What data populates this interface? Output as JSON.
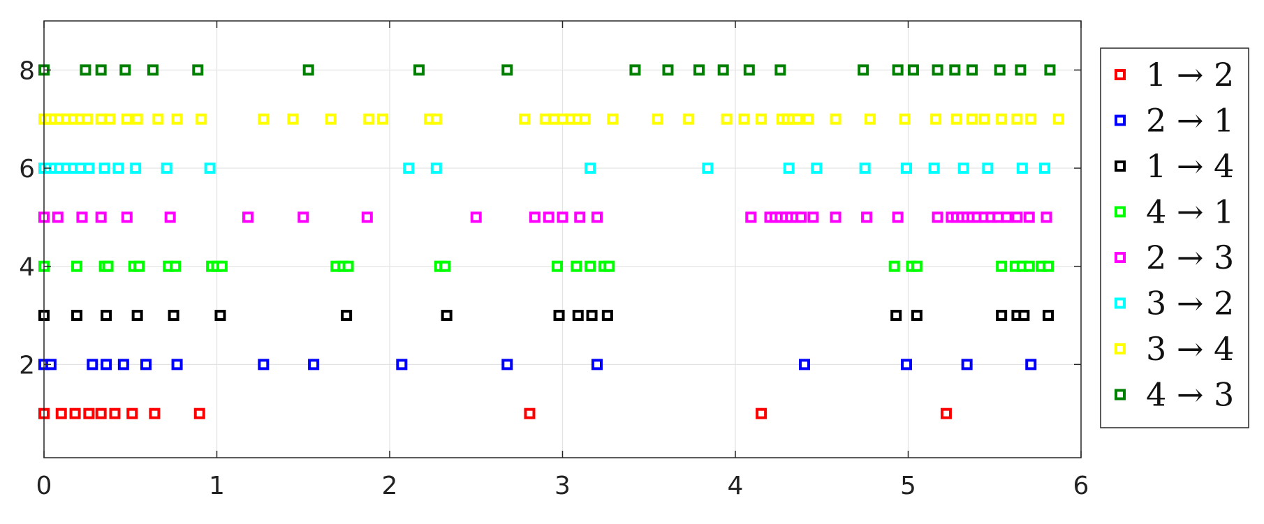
{
  "chart_data": {
    "type": "scatter",
    "title": "",
    "xlabel": "",
    "ylabel": "",
    "xlim": [
      0,
      6
    ],
    "ylim": [
      0.1,
      9
    ],
    "xticks": [
      "0",
      "1",
      "2",
      "3",
      "4",
      "5",
      "6"
    ],
    "yticks": [
      "2",
      "4",
      "6",
      "8"
    ],
    "grid": true,
    "legend_position": "outside-right",
    "marker": "hollow-square",
    "series": [
      {
        "name": "1 → 2",
        "color": "#ff0000",
        "y": 1,
        "x": [
          0.0,
          0.1,
          0.18,
          0.26,
          0.33,
          0.41,
          0.51,
          0.64,
          0.9,
          2.81,
          4.15,
          5.22
        ]
      },
      {
        "name": "2 → 1",
        "color": "#0000ff",
        "y": 2,
        "x": [
          0.0,
          0.04,
          0.28,
          0.36,
          0.46,
          0.59,
          0.77,
          1.27,
          1.56,
          2.07,
          2.68,
          3.2,
          4.4,
          4.99,
          5.34,
          5.71
        ]
      },
      {
        "name": "1 → 4",
        "color": "#000000",
        "y": 3,
        "x": [
          0.0,
          0.19,
          0.36,
          0.54,
          0.75,
          1.02,
          1.75,
          2.33,
          2.98,
          3.09,
          3.17,
          3.26,
          4.93,
          5.05,
          5.54,
          5.63,
          5.67,
          5.81
        ]
      },
      {
        "name": "4 → 1",
        "color": "#00ff00",
        "y": 4,
        "x": [
          0.0,
          0.19,
          0.35,
          0.37,
          0.52,
          0.55,
          0.72,
          0.76,
          0.97,
          1.0,
          1.03,
          1.69,
          1.73,
          1.76,
          2.29,
          2.32,
          2.97,
          3.08,
          3.16,
          3.24,
          3.27,
          4.92,
          5.02,
          5.05,
          5.54,
          5.62,
          5.66,
          5.7,
          5.77,
          5.81
        ]
      },
      {
        "name": "2 → 3",
        "color": "#ff00ff",
        "y": 5,
        "x": [
          0.0,
          0.08,
          0.22,
          0.33,
          0.48,
          0.73,
          1.18,
          1.5,
          1.87,
          2.5,
          2.84,
          2.92,
          3.0,
          3.1,
          3.2,
          4.09,
          4.2,
          4.23,
          4.26,
          4.29,
          4.32,
          4.35,
          4.38,
          4.45,
          4.58,
          4.76,
          4.94,
          5.17,
          5.25,
          5.28,
          5.31,
          5.34,
          5.37,
          5.4,
          5.44,
          5.48,
          5.52,
          5.57,
          5.63,
          5.7,
          5.8
        ]
      },
      {
        "name": "3 → 2",
        "color": "#00ffff",
        "y": 6,
        "x": [
          0.0,
          0.03,
          0.06,
          0.09,
          0.13,
          0.17,
          0.21,
          0.26,
          0.35,
          0.43,
          0.53,
          0.71,
          0.96,
          2.11,
          2.27,
          3.16,
          3.84,
          4.31,
          4.47,
          4.75,
          4.99,
          5.15,
          5.32,
          5.46,
          5.66,
          5.79
        ]
      },
      {
        "name": "3 → 4",
        "color": "#ffff00",
        "y": 7,
        "x": [
          0.0,
          0.03,
          0.06,
          0.09,
          0.13,
          0.17,
          0.21,
          0.25,
          0.33,
          0.38,
          0.48,
          0.54,
          0.66,
          0.77,
          0.91,
          1.27,
          1.44,
          1.66,
          1.88,
          1.96,
          2.23,
          2.27,
          2.78,
          2.9,
          2.95,
          3.0,
          3.05,
          3.09,
          3.13,
          3.29,
          3.55,
          3.73,
          3.95,
          4.05,
          4.15,
          4.27,
          4.3,
          4.33,
          4.36,
          4.42,
          4.58,
          4.78,
          4.98,
          5.16,
          5.28,
          5.37,
          5.44,
          5.54,
          5.63,
          5.71,
          5.87
        ]
      },
      {
        "name": "4 → 3",
        "color": "#008000",
        "y": 8,
        "x": [
          0.0,
          0.24,
          0.33,
          0.47,
          0.63,
          0.89,
          1.53,
          2.17,
          2.68,
          3.42,
          3.61,
          3.79,
          3.93,
          4.08,
          4.26,
          4.74,
          4.94,
          5.03,
          5.17,
          5.27,
          5.37,
          5.53,
          5.65,
          5.82
        ]
      }
    ]
  }
}
